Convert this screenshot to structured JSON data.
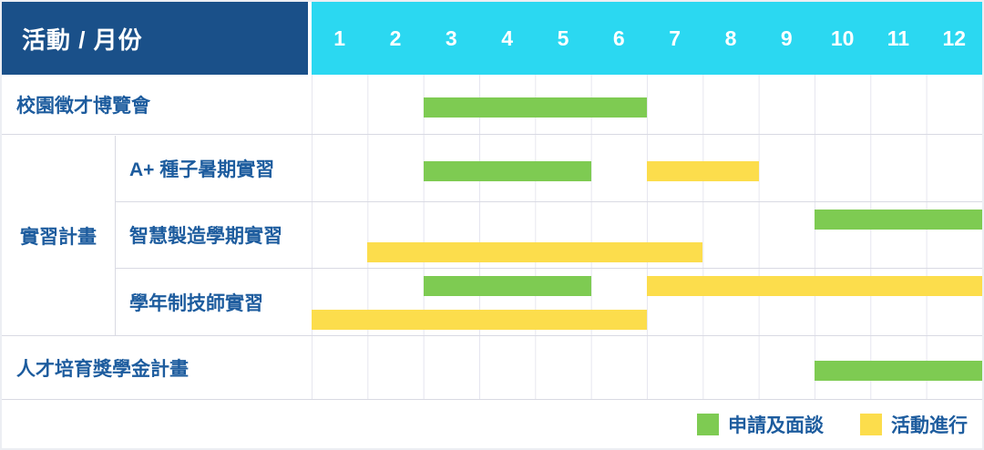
{
  "header": {
    "corner_label": "活動 / 月份"
  },
  "chart_data": {
    "type": "bar",
    "subtype": "gantt",
    "title": "活動 / 月份",
    "x_ticks": [
      "1",
      "2",
      "3",
      "4",
      "5",
      "6",
      "7",
      "8",
      "9",
      "10",
      "11",
      "12"
    ],
    "x_range": [
      1,
      12
    ],
    "grid": true,
    "legend_position": "bottom-right",
    "rows": [
      {
        "group": "",
        "label": "校園徵才博覽會",
        "lines": [
          [
            {
              "kind": "apply",
              "start": 3,
              "end": 6
            }
          ]
        ]
      },
      {
        "group": "實習計畫",
        "label": "A+ 種子暑期實習",
        "lines": [
          [
            {
              "kind": "apply",
              "start": 3,
              "end": 5
            },
            {
              "kind": "active",
              "start": 7,
              "end": 8
            }
          ]
        ]
      },
      {
        "group": "實習計畫",
        "label": "智慧製造學期實習",
        "lines": [
          [
            {
              "kind": "apply",
              "start": 10,
              "end": 12
            }
          ],
          [
            {
              "kind": "active",
              "start": 2,
              "end": 7
            }
          ]
        ]
      },
      {
        "group": "實習計畫",
        "label": "學年制技師實習",
        "lines": [
          [
            {
              "kind": "apply",
              "start": 3,
              "end": 5
            },
            {
              "kind": "active",
              "start": 7,
              "end": 12
            }
          ],
          [
            {
              "kind": "active",
              "start": 1,
              "end": 6
            }
          ]
        ]
      },
      {
        "group": "",
        "label": "人才培育獎學金計畫",
        "lines": [
          [
            {
              "kind": "apply",
              "start": 10,
              "end": 12
            }
          ]
        ]
      }
    ],
    "legend": [
      {
        "kind": "apply",
        "label": "申請及面談",
        "color": "#7ecb52"
      },
      {
        "kind": "active",
        "label": "活動進行",
        "color": "#fcdd4c"
      }
    ]
  },
  "colors": {
    "header_bg": "#1a5089",
    "month_header_bg": "#2bd8f1",
    "header_text": "#ffffff",
    "label_text": "#1d5c9e",
    "gridline": "#e6e6ef",
    "row_line": "#d9dae3"
  }
}
